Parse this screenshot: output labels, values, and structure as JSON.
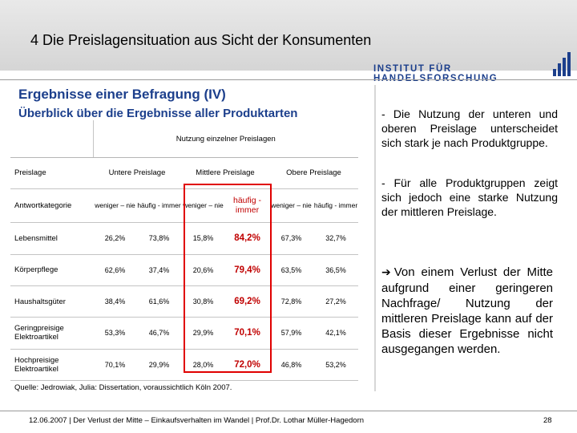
{
  "header": {
    "title": "4 Die Preislagensituation aus Sicht der Konsumenten",
    "brand": "INSTITUT FÜR HANDELSFORSCHUNG"
  },
  "content": {
    "heading": "Ergebnisse einer Befragung (IV)",
    "subheading": "Überblick über die Ergebnisse aller Produktarten"
  },
  "table": {
    "super_header": "Nutzung einzelner Preislagen",
    "col_label_preislage": "Preislage",
    "col_label_kategorie": "Antwortkategorie",
    "groups": [
      "Untere Preislage",
      "Mittlere Preislage",
      "Obere Preislage"
    ],
    "sub": [
      "weniger – nie",
      "häufig - immer",
      "weniger – nie",
      "häufig - immer",
      "weniger – nie",
      "häufig - immer"
    ],
    "rows": [
      {
        "label": "Lebensmittel",
        "values": [
          "26,2%",
          "73,8%",
          "15,8%",
          "84,2%",
          "67,3%",
          "32,7%"
        ]
      },
      {
        "label": "Körperpflege",
        "values": [
          "62,6%",
          "37,4%",
          "20,6%",
          "79,4%",
          "63,5%",
          "36,5%"
        ]
      },
      {
        "label": "Haushaltsgüter",
        "values": [
          "38,4%",
          "61,6%",
          "30,8%",
          "69,2%",
          "72,8%",
          "27,2%"
        ]
      },
      {
        "label": "Geringpreisige Elektroartikel",
        "values": [
          "53,3%",
          "46,7%",
          "29,9%",
          "70,1%",
          "57,9%",
          "42,1%"
        ]
      },
      {
        "label": "Hochpreisige Elektroartikel",
        "values": [
          "70,1%",
          "29,9%",
          "28,0%",
          "72,0%",
          "46,8%",
          "53,2%"
        ]
      }
    ],
    "source": "Quelle: Jedrowiak, Julia: Dissertation, voraussichtlich Köln 2007."
  },
  "side": {
    "bullet1": "- Die Nutzung der unteren und oberen Preislage unterscheidet sich stark je nach Produktgruppe.",
    "bullet2": "- Für alle Produktgruppen zeigt sich jedoch eine starke Nutzung der mittleren Preislage.",
    "conclusion": "Von einem Verlust der Mitte aufgrund einer geringeren Nachfrage/ Nutzung der mittleren Preislage kann auf der Basis dieser Ergebnisse nicht ausgegangen werden."
  },
  "footer": {
    "text": "12.06.2007 | Der Verlust der Mitte – Einkaufsverhalten im Wandel | Prof.Dr. Lothar Müller-Hagedorn",
    "page": "28"
  },
  "colors": {
    "accent": "#1c3f8c",
    "highlight": "#c00000",
    "box": "#e00000"
  },
  "icons": [
    "bar-logo-icon",
    "right-arrow-icon"
  ]
}
